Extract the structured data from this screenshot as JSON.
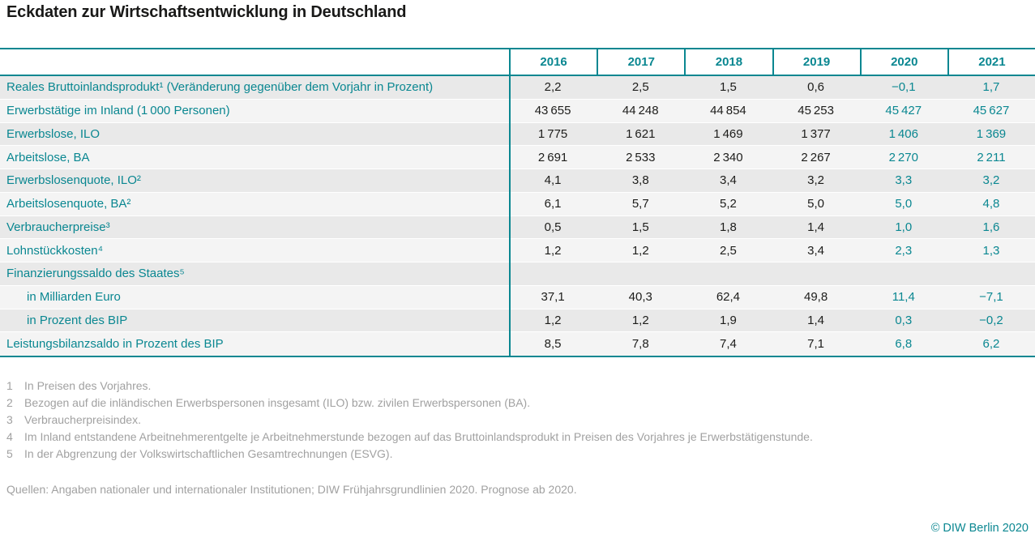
{
  "title": "Eckdaten zur Wirtschaftsentwicklung in Deutschland",
  "colors": {
    "accent_teal": "#0a8791",
    "row_shade_odd": "#e9e9e9",
    "row_shade_even": "#f4f4f4",
    "text_dark": "#1d1d1b",
    "footnote_gray": "#a1a1a1"
  },
  "chart_data": {
    "type": "table",
    "title": "Eckdaten zur Wirtschaftsentwicklung in Deutschland",
    "columns": [
      "2016",
      "2017",
      "2018",
      "2019",
      "2020",
      "2021"
    ],
    "forecast_from_column_index": 4,
    "forecast_note": "Prognose ab 2020",
    "rows": [
      {
        "label": "Reales Bruttoinlandsprodukt¹ (Veränderung gegenüber dem Vorjahr in Prozent)",
        "indent": false,
        "values": [
          "2,2",
          "2,5",
          "1,5",
          "0,6",
          "−0,1",
          "1,7"
        ]
      },
      {
        "label": "Erwerbstätige im Inland (1 000 Personen)",
        "indent": false,
        "values": [
          "43 655",
          "44 248",
          "44 854",
          "45 253",
          "45 427",
          "45 627"
        ]
      },
      {
        "label": "Erwerbslose, ILO",
        "indent": false,
        "values": [
          "1 775",
          "1 621",
          "1 469",
          "1 377",
          "1 406",
          "1 369"
        ]
      },
      {
        "label": "Arbeitslose, BA",
        "indent": false,
        "values": [
          "2 691",
          "2 533",
          "2 340",
          "2 267",
          "2 270",
          "2 211"
        ]
      },
      {
        "label": "Erwerbslosenquote, ILO²",
        "indent": false,
        "values": [
          "4,1",
          "3,8",
          "3,4",
          "3,2",
          "3,3",
          "3,2"
        ]
      },
      {
        "label": "Arbeitslosenquote, BA²",
        "indent": false,
        "values": [
          "6,1",
          "5,7",
          "5,2",
          "5,0",
          "5,0",
          "4,8"
        ]
      },
      {
        "label": "Verbraucherpreise³",
        "indent": false,
        "values": [
          "0,5",
          "1,5",
          "1,8",
          "1,4",
          "1,0",
          "1,6"
        ]
      },
      {
        "label": "Lohnstückkosten⁴",
        "indent": false,
        "values": [
          "1,2",
          "1,2",
          "2,5",
          "3,4",
          "2,3",
          "1,3"
        ]
      },
      {
        "label": "Finanzierungssaldo des Staates⁵",
        "indent": false,
        "values": [
          "",
          "",
          "",
          "",
          "",
          ""
        ]
      },
      {
        "label": "in Milliarden Euro",
        "indent": true,
        "values": [
          "37,1",
          "40,3",
          "62,4",
          "49,8",
          "11,4",
          "−7,1"
        ]
      },
      {
        "label": "in Prozent des BIP",
        "indent": true,
        "values": [
          "1,2",
          "1,2",
          "1,9",
          "1,4",
          "0,3",
          "−0,2"
        ]
      },
      {
        "label": "Leistungsbilanzsaldo in Prozent des BIP",
        "indent": false,
        "values": [
          "8,5",
          "7,8",
          "7,4",
          "7,1",
          "6,8",
          "6,2"
        ]
      }
    ]
  },
  "footnotes": [
    {
      "marker": "1",
      "text": "In Preisen des Vorjahres."
    },
    {
      "marker": "2",
      "text": "Bezogen auf die inländischen Erwerbspersonen insgesamt (ILO) bzw. zivilen Erwerbspersonen (BA)."
    },
    {
      "marker": "3",
      "text": "Verbraucherpreisindex."
    },
    {
      "marker": "4",
      "text": "Im Inland entstandene Arbeitnehmerentgelte je Arbeitnehmerstunde bezogen auf das Bruttoinlandsprodukt in Preisen des Vorjahres je Erwerbstätigenstunde."
    },
    {
      "marker": "5",
      "text": "In der Abgrenzung der Volkswirtschaftlichen Gesamtrechnungen (ESVG)."
    }
  ],
  "sources": "Quellen: Angaben nationaler und internationaler Institutionen; DIW Frühjahrsgrundlinien 2020. Prognose ab 2020.",
  "copyright": "© DIW Berlin 2020"
}
